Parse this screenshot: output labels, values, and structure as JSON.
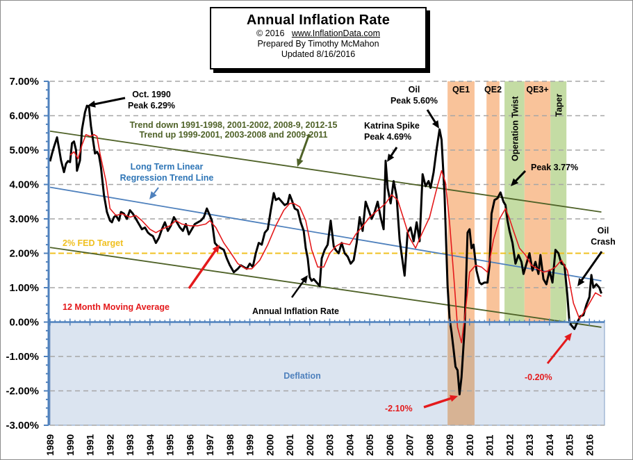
{
  "header": {
    "title": "Annual  Inflation  Rate",
    "copyright": "© 2016",
    "website": "www.InflationData.com",
    "prepared_by": "Prepared  By Timothy  McMahon",
    "updated": "Updated   8/16/2016"
  },
  "colors": {
    "inflation_line": "#000000",
    "moving_average": "#e41a1c",
    "regression_line": "#4f81bd",
    "channel_lines": "#4f6228",
    "fed_target": "#f0c020",
    "deflation_fill": "#dbe4f0",
    "qe_band": "#f9c39a",
    "taper_band": "#c4dca4",
    "qe1_deflation_band": "#d7b394",
    "grid": "#a6a6a6",
    "axis": "#4f81bd"
  },
  "chart_data": {
    "type": "line",
    "title": "Annual Inflation Rate",
    "xlabel": "",
    "ylabel": "",
    "xlim": [
      1989,
      2016.9
    ],
    "ylim": [
      -3.0,
      7.0
    ],
    "grid": true,
    "y_ticks": [
      "7.00%",
      "6.00%",
      "5.00%",
      "4.00%",
      "3.00%",
      "2.00%",
      "1.00%",
      "0.00%",
      "-1.00%",
      "-2.00%",
      "-3.00%"
    ],
    "y_tick_values": [
      7,
      6,
      5,
      4,
      3,
      2,
      1,
      0,
      -1,
      -2,
      -3
    ],
    "x_ticks": [
      "1989",
      "1990",
      "1991",
      "1992",
      "1993",
      "1994",
      "1995",
      "1996",
      "1997",
      "1998",
      "1999",
      "2000",
      "2001",
      "2002",
      "2003",
      "2004",
      "2005",
      "2006",
      "2007",
      "2008",
      "2009",
      "2010",
      "2011",
      "2012",
      "2013",
      "2014",
      "2015",
      "2016"
    ],
    "series": [
      {
        "name": "Annual Inflation Rate",
        "x": [
          1989.0,
          1989.1,
          1989.2,
          1989.35,
          1989.45,
          1989.55,
          1989.7,
          1989.8,
          1989.9,
          1990.0,
          1990.1,
          1990.2,
          1990.3,
          1990.35,
          1990.5,
          1990.6,
          1990.75,
          1990.85,
          1990.95,
          1991.05,
          1991.15,
          1991.25,
          1991.35,
          1991.45,
          1991.55,
          1991.7,
          1991.85,
          1992.0,
          1992.1,
          1992.2,
          1992.3,
          1992.45,
          1992.55,
          1992.7,
          1992.85,
          1993.0,
          1993.15,
          1993.3,
          1993.45,
          1993.6,
          1993.75,
          1993.9,
          1994.0,
          1994.15,
          1994.3,
          1994.45,
          1994.6,
          1994.75,
          1994.9,
          1995.05,
          1995.2,
          1995.35,
          1995.5,
          1995.65,
          1995.8,
          1995.95,
          1996.1,
          1996.25,
          1996.4,
          1996.55,
          1996.7,
          1996.85,
          1997.0,
          1997.1,
          1997.25,
          1997.4,
          1997.55,
          1997.7,
          1997.85,
          1998.0,
          1998.2,
          1998.4,
          1998.55,
          1998.7,
          1998.85,
          1999.0,
          1999.15,
          1999.3,
          1999.45,
          1999.6,
          1999.75,
          1999.9,
          2000.05,
          2000.2,
          2000.3,
          2000.45,
          2000.6,
          2000.75,
          2000.9,
          2001.0,
          2001.1,
          2001.25,
          2001.4,
          2001.55,
          2001.7,
          2001.8,
          2001.9,
          2002.0,
          2002.1,
          2002.2,
          2002.35,
          2002.5,
          2002.6,
          2002.75,
          2002.9,
          2003.05,
          2003.2,
          2003.3,
          2003.45,
          2003.6,
          2003.75,
          2003.9,
          2004.05,
          2004.2,
          2004.35,
          2004.5,
          2004.65,
          2004.8,
          2004.95,
          2005.1,
          2005.25,
          2005.4,
          2005.55,
          2005.7,
          2005.8,
          2005.9,
          2006.05,
          2006.2,
          2006.35,
          2006.5,
          2006.6,
          2006.75,
          2006.9,
          2007.05,
          2007.2,
          2007.35,
          2007.5,
          2007.65,
          2007.8,
          2007.95,
          2008.05,
          2008.2,
          2008.35,
          2008.5,
          2008.6,
          2008.75,
          2008.9,
          2009.0,
          2009.1,
          2009.2,
          2009.3,
          2009.4,
          2009.5,
          2009.6,
          2009.75,
          2009.9,
          2010.0,
          2010.1,
          2010.2,
          2010.35,
          2010.5,
          2010.6,
          2010.75,
          2010.9,
          2011.0,
          2011.1,
          2011.25,
          2011.4,
          2011.55,
          2011.7,
          2011.8,
          2011.9,
          2012.0,
          2012.15,
          2012.3,
          2012.45,
          2012.6,
          2012.7,
          2012.85,
          2013.0,
          2013.15,
          2013.3,
          2013.45,
          2013.55,
          2013.7,
          2013.85,
          2014.0,
          2014.15,
          2014.3,
          2014.45,
          2014.6,
          2014.75,
          2014.9,
          2015.0,
          2015.1,
          2015.25,
          2015.4,
          2015.55,
          2015.7,
          2015.85,
          2016.0,
          2016.1,
          2016.2,
          2016.35,
          2016.5,
          2016.6
        ],
        "values": [
          4.67,
          4.9,
          5.1,
          5.37,
          5.05,
          4.7,
          4.36,
          4.6,
          4.68,
          4.65,
          5.2,
          5.25,
          5.0,
          4.4,
          4.7,
          5.6,
          6.1,
          6.29,
          6.25,
          5.7,
          5.3,
          4.9,
          4.95,
          4.85,
          4.5,
          3.7,
          3.2,
          2.95,
          2.9,
          3.05,
          3.1,
          2.95,
          3.2,
          3.15,
          3.0,
          3.25,
          3.15,
          3.0,
          2.85,
          2.7,
          2.75,
          2.6,
          2.55,
          2.5,
          2.3,
          2.45,
          2.7,
          2.9,
          2.65,
          2.8,
          3.05,
          2.9,
          2.75,
          2.65,
          2.85,
          2.55,
          2.7,
          2.85,
          2.9,
          2.95,
          3.05,
          3.3,
          3.1,
          2.95,
          2.3,
          2.2,
          2.15,
          2.1,
          1.85,
          1.65,
          1.45,
          1.55,
          1.65,
          1.6,
          1.55,
          1.7,
          1.6,
          2.0,
          2.3,
          2.25,
          2.6,
          2.7,
          3.25,
          3.75,
          3.55,
          3.6,
          3.5,
          3.4,
          3.45,
          3.7,
          3.55,
          3.3,
          3.25,
          2.9,
          2.65,
          2.15,
          1.85,
          1.3,
          1.2,
          1.25,
          1.15,
          1.05,
          1.85,
          2.1,
          2.25,
          2.95,
          2.2,
          2.1,
          2.0,
          2.3,
          2.0,
          1.9,
          1.7,
          1.8,
          2.3,
          3.05,
          2.65,
          3.5,
          3.25,
          3.0,
          3.2,
          3.5,
          3.05,
          2.7,
          4.69,
          3.9,
          3.45,
          4.1,
          3.65,
          2.4,
          1.97,
          1.35,
          2.6,
          2.75,
          2.35,
          2.9,
          2.35,
          4.3,
          3.95,
          4.1,
          3.9,
          4.35,
          5.02,
          5.6,
          5.3,
          3.7,
          1.07,
          0.1,
          -0.3,
          -0.8,
          -1.3,
          -1.4,
          -2.1,
          -1.6,
          -0.2,
          2.6,
          2.7,
          2.15,
          2.25,
          1.5,
          1.15,
          1.1,
          1.15,
          1.15,
          1.65,
          3.15,
          3.55,
          3.6,
          3.77,
          3.5,
          3.4,
          2.95,
          2.65,
          2.3,
          1.7,
          1.95,
          1.75,
          1.4,
          1.7,
          2.0,
          1.5,
          1.75,
          1.4,
          1.95,
          1.25,
          1.1,
          1.5,
          1.15,
          2.1,
          2.0,
          1.7,
          1.66,
          0.76,
          0.0,
          -0.1,
          -0.2,
          0.0,
          0.17,
          0.2,
          0.5,
          0.73,
          1.37,
          1.0,
          1.1,
          1.0,
          0.83
        ],
        "color": "#000000"
      },
      {
        "name": "12 Month Moving Average",
        "x": [
          1990.0,
          1990.2,
          1990.4,
          1990.6,
          1990.8,
          1991.0,
          1991.2,
          1991.35,
          1991.5,
          1991.8,
          1992.0,
          1992.3,
          1992.6,
          1993.0,
          1993.3,
          1993.6,
          1994.0,
          1994.3,
          1994.6,
          1995.0,
          1995.3,
          1995.6,
          1996.0,
          1996.4,
          1996.8,
          1997.0,
          1997.3,
          1997.7,
          1998.0,
          1998.4,
          1998.8,
          1999.1,
          1999.5,
          1999.9,
          2000.3,
          2000.7,
          2001.0,
          2001.2,
          2001.5,
          2001.8,
          2002.1,
          2002.4,
          2002.7,
          2003.0,
          2003.3,
          2003.6,
          2004.0,
          2004.3,
          2004.6,
          2005.0,
          2005.4,
          2005.8,
          2006.1,
          2006.4,
          2006.7,
          2007.0,
          2007.3,
          2007.6,
          2008.0,
          2008.3,
          2008.6,
          2008.8,
          2009.0,
          2009.2,
          2009.4,
          2009.6,
          2009.8,
          2010.0,
          2010.3,
          2010.6,
          2010.9,
          2011.2,
          2011.5,
          2011.8,
          2012.0,
          2012.2,
          2012.5,
          2012.8,
          2013.1,
          2013.4,
          2013.7,
          2014.0,
          2014.3,
          2014.6,
          2014.9,
          2015.2,
          2015.5,
          2015.8,
          2016.0,
          2016.3,
          2016.6
        ],
        "values": [
          4.85,
          4.95,
          4.75,
          5.15,
          5.45,
          5.4,
          5.45,
          5.4,
          4.9,
          4.1,
          3.3,
          3.1,
          3.15,
          3.05,
          3.1,
          2.95,
          2.7,
          2.6,
          2.7,
          2.8,
          2.95,
          2.85,
          2.8,
          2.8,
          2.85,
          2.95,
          2.75,
          2.3,
          2.05,
          1.7,
          1.55,
          1.55,
          1.8,
          2.25,
          2.8,
          3.25,
          3.45,
          3.45,
          3.35,
          2.95,
          2.1,
          1.6,
          1.6,
          2.0,
          2.2,
          2.3,
          2.25,
          2.55,
          2.75,
          3.05,
          3.25,
          3.45,
          3.7,
          3.55,
          3.0,
          2.45,
          2.15,
          2.55,
          3.05,
          3.75,
          4.4,
          4.05,
          2.9,
          1.4,
          -0.15,
          -0.6,
          0.35,
          1.45,
          1.65,
          1.6,
          1.45,
          2.4,
          3.0,
          3.3,
          3.0,
          2.65,
          2.15,
          1.95,
          1.65,
          1.55,
          1.45,
          1.5,
          1.6,
          1.8,
          1.5,
          0.55,
          0.1,
          0.35,
          0.55,
          0.85,
          0.75
        ],
        "color": "#e41a1c"
      }
    ],
    "reference_lines": [
      {
        "name": "2% FED Target",
        "value": 2.0,
        "style": "dashed",
        "color": "#f0c020"
      },
      {
        "name": "Long Term Linear Regression Trend Line",
        "x": [
          1989,
          2016.6
        ],
        "values": [
          3.92,
          1.2
        ],
        "color": "#4f81bd"
      },
      {
        "name": "Upper channel",
        "x": [
          1989,
          2016.6
        ],
        "values": [
          5.55,
          3.2
        ],
        "color": "#4f6228"
      },
      {
        "name": "Lower channel",
        "x": [
          1989,
          2016.6
        ],
        "values": [
          2.17,
          -0.15
        ],
        "color": "#4f6228"
      }
    ],
    "bands": [
      {
        "label": "QE1",
        "from": 2008.9,
        "to": 2010.25,
        "color": "#f9c39a"
      },
      {
        "label": "QE2",
        "from": 2010.85,
        "to": 2011.5,
        "color": "#f9c39a"
      },
      {
        "label": "Operation Twist",
        "from": 2011.75,
        "to": 2012.75,
        "color": "#c4dca4"
      },
      {
        "label": "QE3+",
        "from": 2012.75,
        "to": 2014.05,
        "color": "#f9c39a"
      },
      {
        "label": "Taper",
        "from": 2014.05,
        "to": 2014.85,
        "color": "#c4dca4"
      }
    ],
    "regions": [
      {
        "label": "Deflation",
        "from_value": -3.0,
        "to_value": 0.0,
        "color": "#dbe4f0"
      }
    ],
    "annotations": [
      {
        "text": [
          "Oct. 1990",
          "Peak 6.29%"
        ],
        "color": "#000000"
      },
      {
        "text": [
          "Trend  down 1991-1998,  2001-2002,  2008-9,  2012-15",
          "Trend  up  1999-2001,  2003-2008  and 2009-2011"
        ],
        "color": "#4f6228"
      },
      {
        "text": [
          "Long Term Linear",
          "Regression  Trend Line"
        ],
        "color": "#2e75b6"
      },
      {
        "text": [
          "2% FED Target"
        ],
        "color": "#f0c020"
      },
      {
        "text": [
          "12 Month Moving Average"
        ],
        "color": "#e41a1c"
      },
      {
        "text": [
          "Annual Inflation Rate"
        ],
        "color": "#000000"
      },
      {
        "text": [
          "Katrina  Spike",
          "Peak 4.69%"
        ],
        "color": "#000000"
      },
      {
        "text": [
          "Oil",
          "Peak 5.60%"
        ],
        "color": "#000000"
      },
      {
        "text": [
          "Peak 3.77%"
        ],
        "color": "#000000"
      },
      {
        "text": [
          "Oil",
          "Crash"
        ],
        "color": "#000000"
      },
      {
        "text": [
          "-2.10%"
        ],
        "color": "#e41a1c"
      },
      {
        "text": [
          "-0.20%"
        ],
        "color": "#e41a1c"
      },
      {
        "text": [
          "Deflation"
        ],
        "color": "#4f81bd"
      }
    ],
    "legend": "none"
  }
}
